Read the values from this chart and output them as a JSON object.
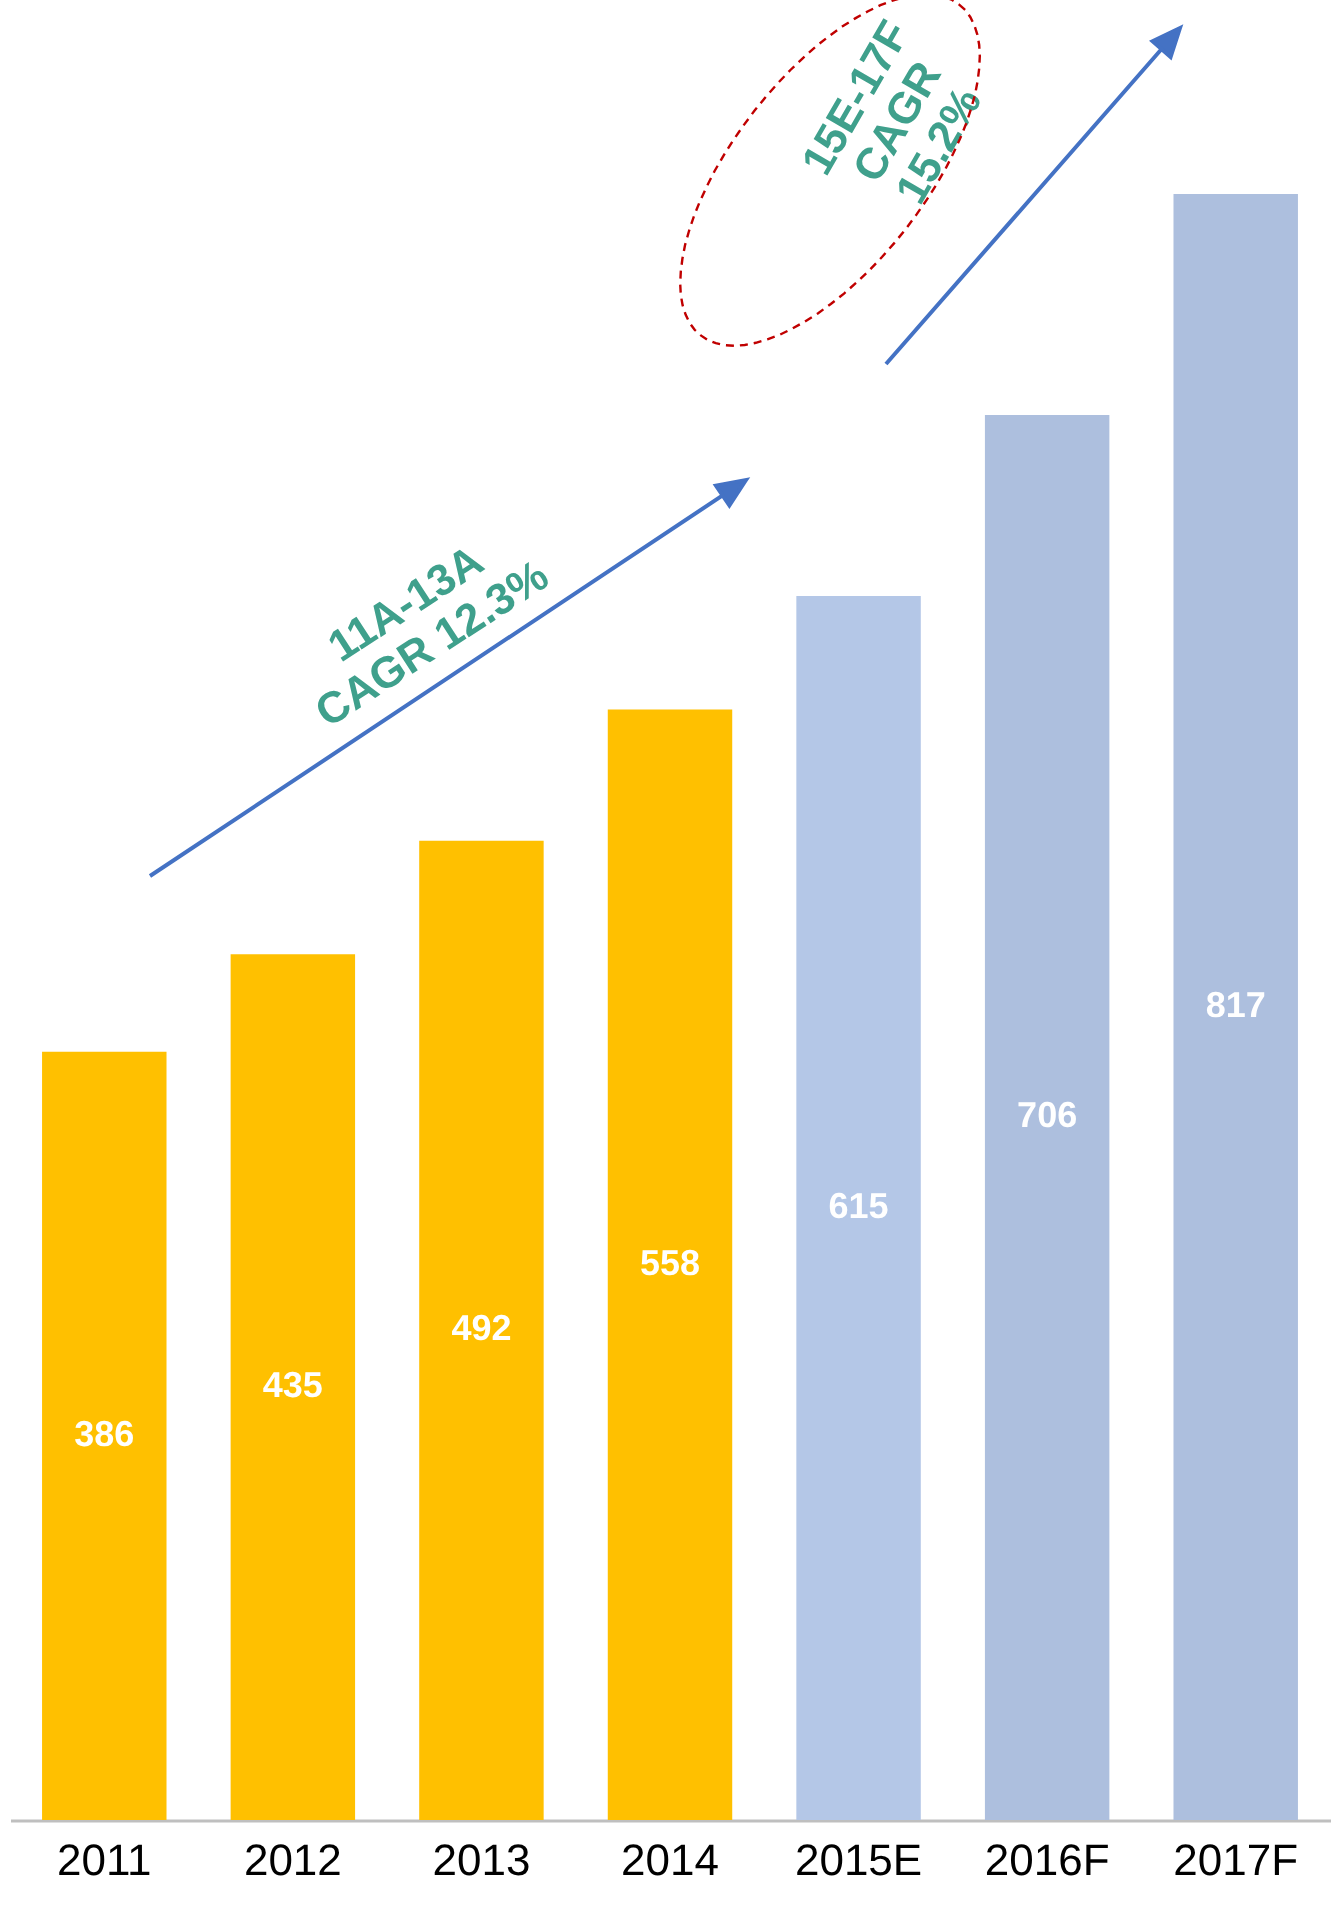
{
  "chart_data": {
    "type": "bar",
    "categories": [
      "2011",
      "2012",
      "2013",
      "2014",
      "2015E",
      "2016F",
      "2017F"
    ],
    "values": [
      386,
      435,
      492,
      558,
      615,
      706,
      817
    ],
    "colors": [
      "#ffc000",
      "#ffc000",
      "#ffc000",
      "#ffc000",
      "#b4c7e7",
      "#adbfde",
      "#adbfde"
    ],
    "data_labels": true,
    "annotations": [
      "11A-13A\nCAGR 12.3%",
      "15E-17F\nCAGR\n15.2%"
    ]
  }
}
